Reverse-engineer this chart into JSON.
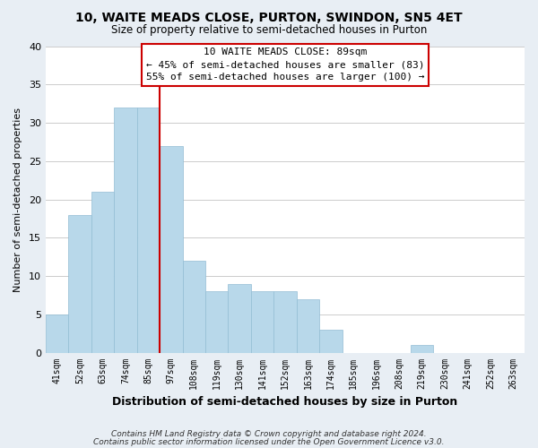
{
  "title": "10, WAITE MEADS CLOSE, PURTON, SWINDON, SN5 4ET",
  "subtitle": "Size of property relative to semi-detached houses in Purton",
  "xlabel": "Distribution of semi-detached houses by size in Purton",
  "ylabel": "Number of semi-detached properties",
  "bin_labels": [
    "41sqm",
    "52sqm",
    "63sqm",
    "74sqm",
    "85sqm",
    "97sqm",
    "108sqm",
    "119sqm",
    "130sqm",
    "141sqm",
    "152sqm",
    "163sqm",
    "174sqm",
    "185sqm",
    "196sqm",
    "208sqm",
    "219sqm",
    "230sqm",
    "241sqm",
    "252sqm",
    "263sqm"
  ],
  "bar_values": [
    5,
    18,
    21,
    32,
    32,
    27,
    12,
    8,
    9,
    8,
    8,
    7,
    3,
    0,
    0,
    0,
    1,
    0,
    0,
    0,
    0
  ],
  "bar_color": "#b8d8ea",
  "bar_edge_color": "#93bdd4",
  "highlight_color": "#cc0000",
  "vline_bar_index": 4,
  "annotation_title": "10 WAITE MEADS CLOSE: 89sqm",
  "annotation_line1": "← 45% of semi-detached houses are smaller (83)",
  "annotation_line2": "55% of semi-detached houses are larger (100) →",
  "annotation_box_color": "#ffffff",
  "annotation_box_edgecolor": "#cc0000",
  "ylim": [
    0,
    40
  ],
  "yticks": [
    0,
    5,
    10,
    15,
    20,
    25,
    30,
    35,
    40
  ],
  "footer_line1": "Contains HM Land Registry data © Crown copyright and database right 2024.",
  "footer_line2": "Contains public sector information licensed under the Open Government Licence v3.0.",
  "bg_color": "#e8eef4",
  "plot_bg_color": "#ffffff",
  "grid_color": "#cccccc"
}
